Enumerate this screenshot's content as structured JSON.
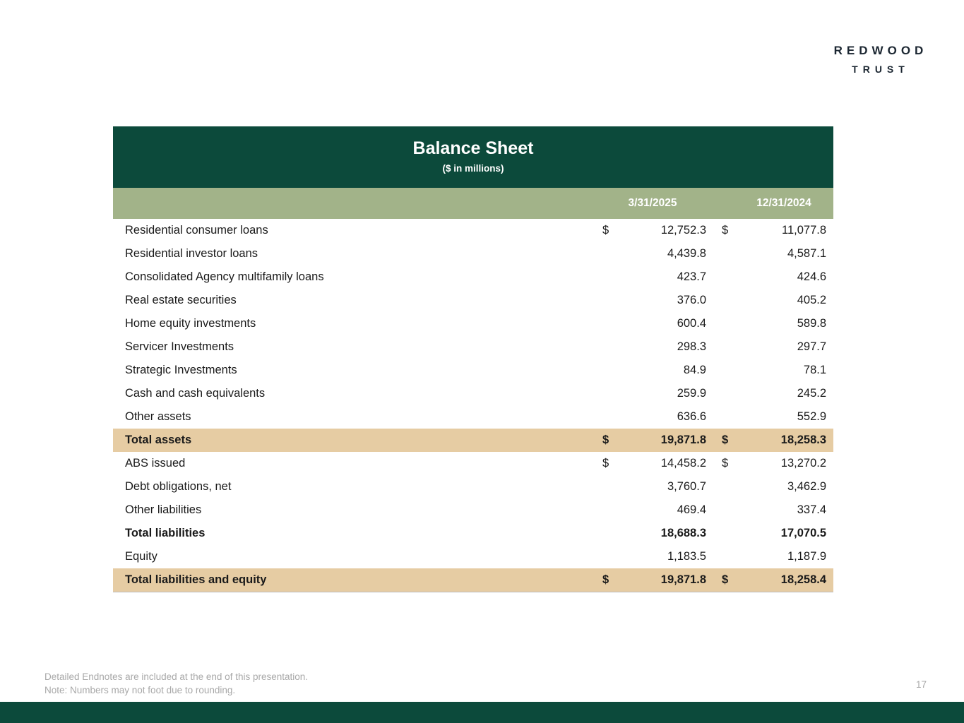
{
  "logo": {
    "line1": "REDWOOD",
    "line2": "TRUST"
  },
  "colors": {
    "header_green": "#0c4a3b",
    "column_header_sage": "#a2b389",
    "total_row_tan": "#e6cca3",
    "footer_green": "#0c4a3b"
  },
  "table": {
    "title": "Balance Sheet",
    "subtitle": "($ in millions)",
    "columns": [
      "3/31/2025",
      "12/31/2024"
    ],
    "rows": [
      {
        "label": "Residential consumer loans",
        "d1": "$",
        "v1": "12,752.3",
        "d2": "$",
        "v2": "11,077.8",
        "bold": false,
        "highlight": false
      },
      {
        "label": "Residential investor loans",
        "d1": "",
        "v1": "4,439.8",
        "d2": "",
        "v2": "4,587.1",
        "bold": false,
        "highlight": false
      },
      {
        "label": "Consolidated Agency multifamily loans",
        "d1": "",
        "v1": "423.7",
        "d2": "",
        "v2": "424.6",
        "bold": false,
        "highlight": false
      },
      {
        "label": "Real estate securities",
        "d1": "",
        "v1": "376.0",
        "d2": "",
        "v2": "405.2",
        "bold": false,
        "highlight": false
      },
      {
        "label": "Home equity investments",
        "d1": "",
        "v1": "600.4",
        "d2": "",
        "v2": "589.8",
        "bold": false,
        "highlight": false
      },
      {
        "label": "Servicer Investments",
        "d1": "",
        "v1": "298.3",
        "d2": "",
        "v2": "297.7",
        "bold": false,
        "highlight": false
      },
      {
        "label": "Strategic Investments",
        "d1": "",
        "v1": "84.9",
        "d2": "",
        "v2": "78.1",
        "bold": false,
        "highlight": false
      },
      {
        "label": "Cash and cash equivalents",
        "d1": "",
        "v1": "259.9",
        "d2": "",
        "v2": "245.2",
        "bold": false,
        "highlight": false
      },
      {
        "label": "Other assets",
        "d1": "",
        "v1": "636.6",
        "d2": "",
        "v2": "552.9",
        "bold": false,
        "highlight": false
      },
      {
        "label": "Total assets",
        "d1": "$",
        "v1": "19,871.8",
        "d2": "$",
        "v2": "18,258.3",
        "bold": true,
        "highlight": true
      },
      {
        "label": "ABS issued",
        "d1": "$",
        "v1": "14,458.2",
        "d2": "$",
        "v2": "13,270.2",
        "bold": false,
        "highlight": false
      },
      {
        "label": "Debt obligations, net",
        "d1": "",
        "v1": "3,760.7",
        "d2": "",
        "v2": "3,462.9",
        "bold": false,
        "highlight": false
      },
      {
        "label": "Other liabilities",
        "d1": "",
        "v1": "469.4",
        "d2": "",
        "v2": "337.4",
        "bold": false,
        "highlight": false
      },
      {
        "label": "Total liabilities",
        "d1": "",
        "v1": "18,688.3",
        "d2": "",
        "v2": "17,070.5",
        "bold": true,
        "highlight": false
      },
      {
        "label": "Equity",
        "d1": "",
        "v1": "1,183.5",
        "d2": "",
        "v2": "1,187.9",
        "bold": false,
        "highlight": false
      },
      {
        "label": "Total liabilities and equity",
        "d1": "$",
        "v1": "19,871.8",
        "d2": "$",
        "v2": "18,258.4",
        "bold": true,
        "highlight": true
      }
    ]
  },
  "footnotes": [
    "Detailed Endnotes are included at the end of this presentation.",
    "Note: Numbers may not foot due to rounding."
  ],
  "page_number": "17"
}
